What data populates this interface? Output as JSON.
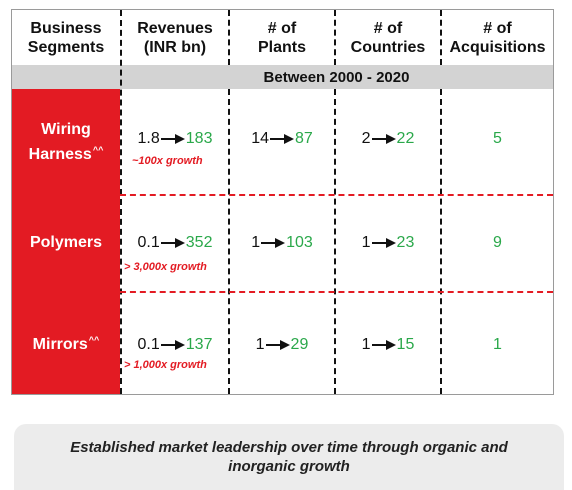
{
  "headers": {
    "segment": [
      "Business",
      "Segments"
    ],
    "revenue": [
      "Revenues",
      "(INR bn)"
    ],
    "plants": [
      "# of",
      "Plants"
    ],
    "countries": [
      "# of",
      "Countries"
    ],
    "acquisitions": [
      "# of",
      "Acquisitions"
    ]
  },
  "period": "Between 2000 - 2020",
  "rows": [
    {
      "segment": [
        "Wiring",
        "Harness"
      ],
      "footnote": "^^",
      "revenue_from": "1.8",
      "revenue_to": "183",
      "growth": "~100x growth",
      "plants_from": "14",
      "plants_to": "87",
      "countries_from": "2",
      "countries_to": "22",
      "acquisitions": "5"
    },
    {
      "segment": [
        "Polymers"
      ],
      "footnote": "",
      "revenue_from": "0.1",
      "revenue_to": "352",
      "growth": "> 3,000x growth",
      "plants_from": "1",
      "plants_to": "103",
      "countries_from": "1",
      "countries_to": "23",
      "acquisitions": "9"
    },
    {
      "segment": [
        "Mirrors"
      ],
      "footnote": "^^",
      "revenue_from": "0.1",
      "revenue_to": "137",
      "growth": "> 1,000x growth",
      "plants_from": "1",
      "plants_to": "29",
      "countries_from": "1",
      "countries_to": "15",
      "acquisitions": "1"
    }
  ],
  "footer": "Established market leadership over time through organic and inorganic growth",
  "colors": {
    "accent": "#e31b23",
    "growth_green": "#2aa84a",
    "band_grey": "#d3d3d3"
  }
}
